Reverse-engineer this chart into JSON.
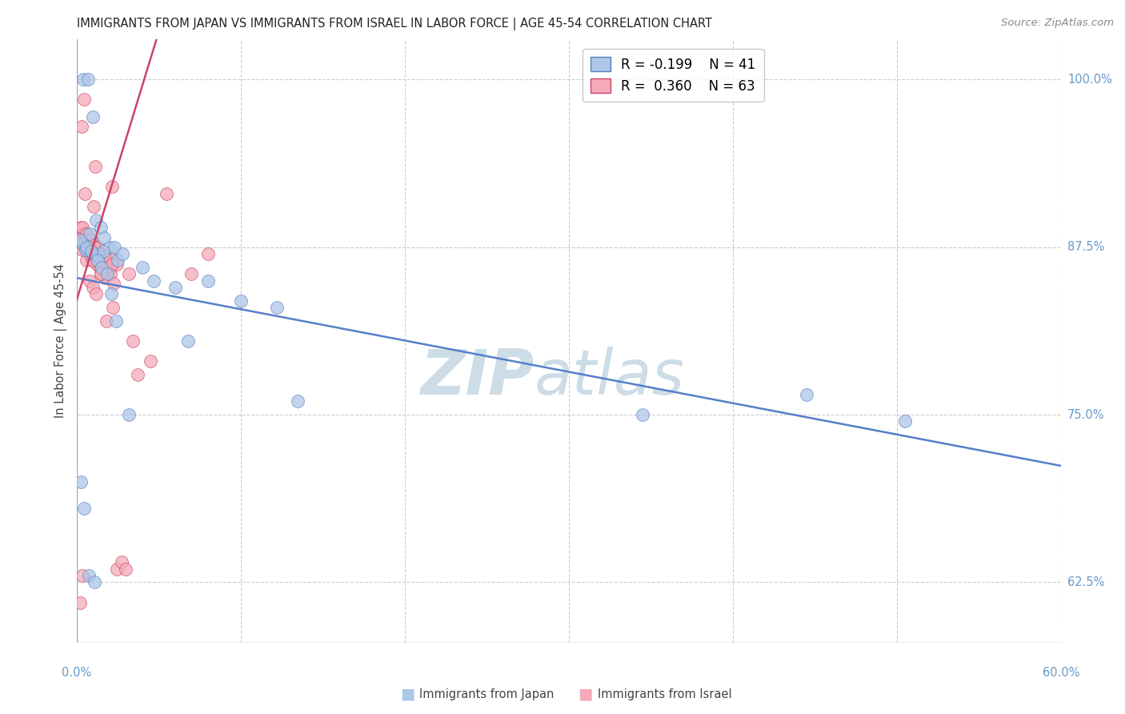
{
  "title": "IMMIGRANTS FROM JAPAN VS IMMIGRANTS FROM ISRAEL IN LABOR FORCE | AGE 45-54 CORRELATION CHART",
  "source": "Source: ZipAtlas.com",
  "ylabel": "In Labor Force | Age 45-54",
  "yticks": [
    62.5,
    75.0,
    87.5,
    100.0
  ],
  "ytick_labels": [
    "62.5%",
    "75.0%",
    "87.5%",
    "100.0%"
  ],
  "xtick_vals": [
    0,
    10,
    20,
    30,
    40,
    50,
    60
  ],
  "xlim": [
    0.0,
    60.0
  ],
  "ylim": [
    58.0,
    103.0
  ],
  "japan_color": "#aec6e8",
  "israel_color": "#f4aab8",
  "japan_edge_color": "#5580bb",
  "israel_edge_color": "#cc4466",
  "japan_line_color": "#5580c8",
  "israel_line_color": "#cc4466",
  "axis_label_color": "#6699cc",
  "legend_japan_label": "R = -0.199    N = 41",
  "legend_israel_label": "R =  0.360    N = 63",
  "bottom_legend_japan": "Immigrants from Japan",
  "bottom_legend_israel": "Immigrants from Israel",
  "watermark_color": "#ccdde8",
  "grid_color": "#cccccc",
  "background_color": "#ffffff",
  "japan_x": [
    0.4,
    0.7,
    1.0,
    1.2,
    1.5,
    0.8,
    1.7,
    2.0,
    2.3,
    0.35,
    0.55,
    0.95,
    1.1,
    1.35,
    1.65,
    2.5,
    2.8,
    4.0,
    4.7,
    6.0,
    6.8,
    8.0,
    10.0,
    12.2,
    13.5,
    0.2,
    0.6,
    0.9,
    1.3,
    1.55,
    1.85,
    2.1,
    2.4,
    3.2,
    0.25,
    0.45,
    0.75,
    1.1,
    44.5,
    50.5,
    34.5
  ],
  "japan_y": [
    100.0,
    100.0,
    97.2,
    89.5,
    89.0,
    88.5,
    88.2,
    87.5,
    87.5,
    87.8,
    87.3,
    87.0,
    87.0,
    86.8,
    87.2,
    86.5,
    87.0,
    86.0,
    85.0,
    84.5,
    80.5,
    85.0,
    83.5,
    83.0,
    76.0,
    88.0,
    87.5,
    87.2,
    86.5,
    86.0,
    85.5,
    84.0,
    82.0,
    75.0,
    70.0,
    68.0,
    63.0,
    62.5,
    76.5,
    74.5,
    75.0
  ],
  "israel_x": [
    0.2,
    0.35,
    0.45,
    0.55,
    0.65,
    0.75,
    0.85,
    0.95,
    1.05,
    1.15,
    1.25,
    1.45,
    1.55,
    1.75,
    1.95,
    2.15,
    2.45,
    2.75,
    3.45,
    0.28,
    0.48,
    0.68,
    0.88,
    1.08,
    1.38,
    1.68,
    2.08,
    0.18,
    0.38,
    0.58,
    0.78,
    0.98,
    1.18,
    1.48,
    1.78,
    2.28,
    0.28,
    0.48,
    0.88,
    1.28,
    1.58,
    1.98,
    2.48,
    3.75,
    0.38,
    0.58,
    0.78,
    1.08,
    1.38,
    1.68,
    2.18,
    2.98,
    0.3,
    1.0,
    1.5,
    2.2,
    0.5,
    1.8,
    3.2,
    4.5,
    5.5,
    7.0,
    8.0
  ],
  "israel_y": [
    61.0,
    63.0,
    98.5,
    88.5,
    87.5,
    87.0,
    86.8,
    86.5,
    90.5,
    93.5,
    86.2,
    86.0,
    85.5,
    85.2,
    85.8,
    92.0,
    63.5,
    64.0,
    80.5,
    88.0,
    87.5,
    87.8,
    86.8,
    87.2,
    86.5,
    86.0,
    85.5,
    88.2,
    87.3,
    86.5,
    85.0,
    84.5,
    84.0,
    85.5,
    86.0,
    84.8,
    89.0,
    88.5,
    88.0,
    87.5,
    87.0,
    86.8,
    86.2,
    78.0,
    89.0,
    88.5,
    88.0,
    87.5,
    87.0,
    86.8,
    86.2,
    63.5,
    96.5,
    86.5,
    85.5,
    83.0,
    91.5,
    82.0,
    85.5,
    79.0,
    91.5,
    85.5,
    87.0
  ]
}
